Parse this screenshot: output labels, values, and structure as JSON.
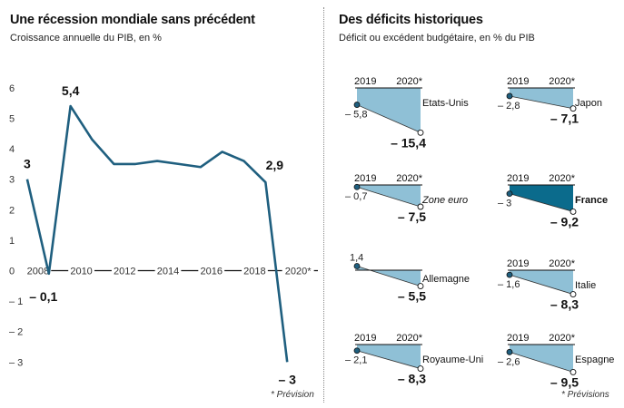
{
  "left_panel": {
    "title": "Une récession mondiale sans précédent",
    "subtitle": "Croissance annuelle du PIB, en %",
    "note": "* Prévision"
  },
  "right_panel": {
    "title": "Des déficits historiques",
    "subtitle": "Déficit ou excédent budgétaire, en % du PIB",
    "note": "* Prévisions"
  },
  "colors": {
    "line": "#1f5f7f",
    "fill_light": "#8fc0d6",
    "fill_dark": "#0b6b8c",
    "axis": "#111111"
  },
  "chart_data": [
    {
      "type": "line",
      "title": "Une récession mondiale sans précédent",
      "subtitle": "Croissance annuelle du PIB, en %",
      "x": [
        2007,
        2008,
        2009,
        2010,
        2011,
        2012,
        2013,
        2014,
        2015,
        2016,
        2017,
        2018,
        2019,
        2020
      ],
      "y": [
        3,
        -0.1,
        5.4,
        4.3,
        3.5,
        3.5,
        3.6,
        3.5,
        3.4,
        3.9,
        3.6,
        2.9,
        -3,
        null
      ],
      "series": [
        {
          "values": [
            3.0,
            -0.1,
            5.4,
            4.3,
            3.5,
            3.5,
            3.6,
            3.5,
            3.4,
            3.9,
            3.6,
            2.9,
            -3.0
          ]
        }
      ],
      "x_values": [
        2007.5,
        2008.5,
        2009.5,
        2010.5,
        2011.5,
        2012.5,
        2013.5,
        2014.5,
        2015.5,
        2016.5,
        2017.5,
        2018.5,
        2019.5
      ],
      "x_tick_labels": [
        "2008",
        "2010",
        "2012",
        "2014",
        "2016",
        "2018",
        "2020*"
      ],
      "x_tick_values": [
        2008,
        2010,
        2012,
        2014,
        2016,
        2018,
        2020
      ],
      "y_ticks": [
        "6",
        "5",
        "4",
        "3",
        "2",
        "1",
        "0",
        "– 1",
        "– 2",
        "– 3"
      ],
      "y_tick_values": [
        6,
        5,
        4,
        3,
        2,
        1,
        0,
        -1,
        -2,
        -3
      ],
      "ylim": [
        -3.3,
        6.4
      ],
      "xlim": [
        2007,
        2021
      ],
      "data_labels": [
        {
          "text": "3",
          "x": 2007.5,
          "y": 3.0
        },
        {
          "text": "– 0,1",
          "x": 2008.5,
          "y": -0.1
        },
        {
          "text": "5,4",
          "x": 2009.5,
          "y": 5.4
        },
        {
          "text": "2,9",
          "x": 2018.5,
          "y": 2.9
        },
        {
          "text": "– 3",
          "x": 2019.5,
          "y": -3.0
        }
      ],
      "grid": false
    },
    {
      "type": "area",
      "title": "Des déficits historiques",
      "subtitle": "Déficit ou excédent budgétaire, en % du PIB",
      "panels": [
        {
          "country": "Etats-Unis",
          "v2019": -5.8,
          "v2020": -15.4,
          "label2019": "– 5,8",
          "label2020": "– 15,4",
          "show_years": true,
          "highlight": false,
          "italic": false
        },
        {
          "country": "Japon",
          "v2019": -2.8,
          "v2020": -7.1,
          "label2019": "– 2,8",
          "label2020": "– 7,1",
          "show_years": true,
          "highlight": false,
          "italic": false
        },
        {
          "country": "Zone euro",
          "v2019": -0.7,
          "v2020": -7.5,
          "label2019": "– 0,7",
          "label2020": "– 7,5",
          "show_years": true,
          "highlight": false,
          "italic": true
        },
        {
          "country": "France",
          "v2019": -3,
          "v2020": -9.2,
          "label2019": "– 3",
          "label2020": "– 9,2",
          "show_years": true,
          "highlight": true,
          "italic": false
        },
        {
          "country": "Allemagne",
          "v2019": 1.4,
          "v2020": -5.5,
          "label2019": "1,4",
          "label2020": "– 5,5",
          "show_years": false,
          "highlight": false,
          "italic": false
        },
        {
          "country": "Italie",
          "v2019": -1.6,
          "v2020": -8.3,
          "label2019": "– 1,6",
          "label2020": "– 8,3",
          "show_years": true,
          "highlight": false,
          "italic": false
        },
        {
          "country": "Royaume-Uni",
          "v2019": -2.1,
          "v2020": -8.3,
          "label2019": "– 2,1",
          "label2020": "– 8,3",
          "show_years": true,
          "highlight": false,
          "italic": false
        },
        {
          "country": "Espagne",
          "v2019": -2.6,
          "v2020": -9.5,
          "label2019": "– 2,6",
          "label2020": "– 9,5",
          "show_years": true,
          "highlight": false,
          "italic": false
        }
      ],
      "year_labels": [
        "2019",
        "2020*"
      ]
    }
  ]
}
